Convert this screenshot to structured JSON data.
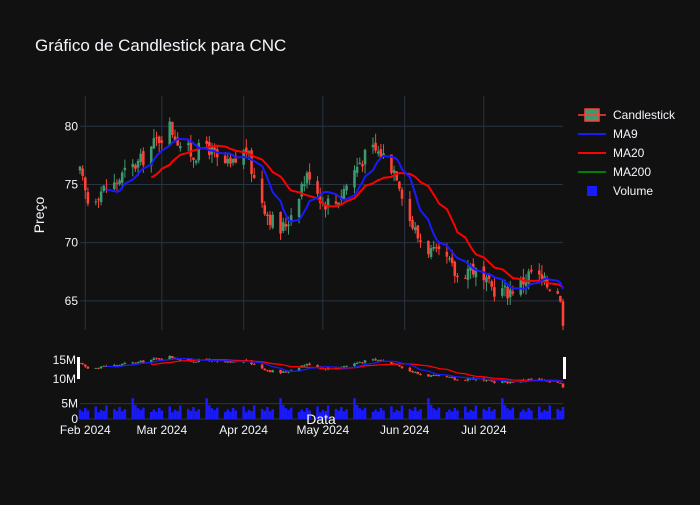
{
  "chart_data": {
    "type": "candlestick",
    "title": "Gráfico de Candlestick para CNC",
    "ylabel": "Preço",
    "xlabel": "Data",
    "colors": {
      "background": "#111111",
      "grid": "#283442",
      "increasing": "#3d9970",
      "decreasing": "#ff4136",
      "ma9": "#1a1aff",
      "ma20": "#ff0000",
      "ma200": "#008000",
      "volume": "#1a1aff"
    },
    "legend": {
      "position": "top-right",
      "items": [
        {
          "label": "Candlestick",
          "kind": "candle"
        },
        {
          "label": "MA9",
          "kind": "line",
          "color": "#1a1aff"
        },
        {
          "label": "MA20",
          "kind": "line",
          "color": "#ff0000"
        },
        {
          "label": "MA200",
          "kind": "line",
          "color": "#008000"
        },
        {
          "label": "Volume",
          "kind": "square",
          "color": "#1a1aff"
        }
      ]
    },
    "x_ticks": [
      "Feb 2024",
      "Mar 2024",
      "Apr 2024",
      "May 2024",
      "Jun 2024",
      "Jul 2024"
    ],
    "x_tick_dates": [
      "2024-02-01",
      "2024-03-01",
      "2024-04-01",
      "2024-05-01",
      "2024-06-01",
      "2024-07-01"
    ],
    "x_range": [
      "2024-01-30",
      "2024-07-31"
    ],
    "main_y": {
      "range": [
        62.5,
        82.6
      ],
      "ticks": [
        65,
        70,
        75,
        80
      ]
    },
    "slider_y": {
      "ticks": [
        "10M",
        "15M"
      ]
    },
    "volume_y": {
      "range": [
        0,
        7500000
      ],
      "ticks": [
        0,
        5000000
      ],
      "tick_labels": [
        "0",
        "5M"
      ]
    },
    "anchors": [
      [
        "2024-01-30",
        76.0
      ],
      [
        "2024-02-02",
        73.5
      ],
      [
        "2024-02-07",
        74.5
      ],
      [
        "2024-02-12",
        75.0
      ],
      [
        "2024-02-16",
        76.0
      ],
      [
        "2024-02-22",
        77.0
      ],
      [
        "2024-02-27",
        78.5
      ],
      [
        "2024-03-04",
        80.0
      ],
      [
        "2024-03-08",
        78.5
      ],
      [
        "2024-03-13",
        77.5
      ],
      [
        "2024-03-18",
        78.5
      ],
      [
        "2024-03-22",
        77.0
      ],
      [
        "2024-03-27",
        76.5
      ],
      [
        "2024-04-02",
        78.0
      ],
      [
        "2024-04-05",
        75.5
      ],
      [
        "2024-04-10",
        72.5
      ],
      [
        "2024-04-15",
        71.0
      ],
      [
        "2024-04-18",
        72.0
      ],
      [
        "2024-04-23",
        75.0
      ],
      [
        "2024-04-26",
        76.0
      ],
      [
        "2024-05-01",
        73.5
      ],
      [
        "2024-05-06",
        73.5
      ],
      [
        "2024-05-10",
        75.0
      ],
      [
        "2024-05-15",
        77.0
      ],
      [
        "2024-05-20",
        78.0
      ],
      [
        "2024-05-24",
        77.5
      ],
      [
        "2024-05-29",
        76.0
      ],
      [
        "2024-06-03",
        72.0
      ],
      [
        "2024-06-06",
        70.5
      ],
      [
        "2024-06-12",
        69.0
      ],
      [
        "2024-06-17",
        68.5
      ],
      [
        "2024-06-21",
        67.0
      ],
      [
        "2024-06-26",
        68.0
      ],
      [
        "2024-07-01",
        66.5
      ],
      [
        "2024-07-05",
        66.0
      ],
      [
        "2024-07-10",
        65.8
      ],
      [
        "2024-07-15",
        66.5
      ],
      [
        "2024-07-19",
        67.5
      ],
      [
        "2024-07-24",
        66.5
      ],
      [
        "2024-07-29",
        66.0
      ],
      [
        "2024-07-31",
        63.5
      ]
    ],
    "volume_pattern": [
      3.1,
      2.4,
      3.6,
      2.8,
      4.1,
      2.2,
      3.0,
      2.6,
      4.4,
      3.3,
      2.7,
      3.9,
      2.5,
      3.2,
      6.8,
      4.6,
      3.5,
      2.9,
      3.7,
      2.3
    ]
  }
}
